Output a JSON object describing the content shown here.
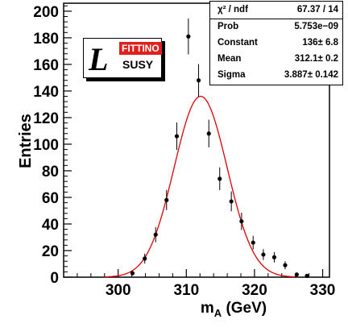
{
  "chart_data": {
    "type": "scatter",
    "xlabel_main": "m",
    "xlabel_sub": "A",
    "xlabel_tail": " (GeV)",
    "ylabel": "Entries",
    "xlim": [
      292,
      331
    ],
    "ylim": [
      0,
      206
    ],
    "x_ticks": [
      300,
      310,
      320,
      330
    ],
    "y_ticks": [
      0,
      20,
      40,
      60,
      80,
      100,
      120,
      140,
      160,
      180,
      200
    ],
    "series": [
      {
        "points": [
          {
            "x": 302.1,
            "y": 3,
            "err": 1.7
          },
          {
            "x": 303.9,
            "y": 14,
            "err": 3.7
          },
          {
            "x": 305.5,
            "y": 32,
            "err": 5.7
          },
          {
            "x": 307.1,
            "y": 58,
            "err": 7.6
          },
          {
            "x": 308.6,
            "y": 106,
            "err": 10.3
          },
          {
            "x": 310.3,
            "y": 181,
            "err": 13.5
          },
          {
            "x": 311.8,
            "y": 148,
            "err": 12.2
          },
          {
            "x": 313.3,
            "y": 108,
            "err": 10.4
          },
          {
            "x": 314.9,
            "y": 74,
            "err": 8.6
          },
          {
            "x": 316.6,
            "y": 57,
            "err": 7.5
          },
          {
            "x": 318.1,
            "y": 42,
            "err": 6.5
          },
          {
            "x": 319.8,
            "y": 26,
            "err": 5.1
          },
          {
            "x": 321.3,
            "y": 17,
            "err": 4.1
          },
          {
            "x": 322.9,
            "y": 15,
            "err": 3.9
          },
          {
            "x": 324.5,
            "y": 9,
            "err": 3.0
          },
          {
            "x": 326.2,
            "y": 2,
            "err": 1.4
          },
          {
            "x": 327.7,
            "y": 1,
            "err": 1.0
          }
        ]
      }
    ],
    "fit": {
      "function": "gaussian",
      "constant": 136,
      "mean": 312.1,
      "sigma": 3.887,
      "color": "#e00000"
    }
  },
  "stats": [
    {
      "name": "χ² / ndf",
      "value": "67.37 / 14"
    },
    {
      "name": "Prob",
      "value": "5.753e−09"
    },
    {
      "name": "Constant",
      "value": "136± 6.8"
    },
    {
      "name": "Mean",
      "value": "312.1± 0.2"
    },
    {
      "name": "Sigma",
      "value": "3.887± 0.142"
    }
  ],
  "logo": {
    "letter": "L",
    "top_text": "FITTINO",
    "bottom_text": "SUSY"
  }
}
